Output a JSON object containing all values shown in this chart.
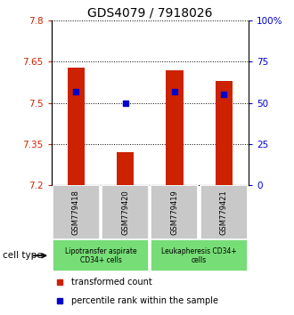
{
  "title": "GDS4079 / 7918026",
  "samples": [
    "GSM779418",
    "GSM779420",
    "GSM779419",
    "GSM779421"
  ],
  "red_values": [
    7.63,
    7.32,
    7.62,
    7.58
  ],
  "blue_values": [
    57,
    50,
    57,
    55
  ],
  "y_min": 7.2,
  "y_max": 7.8,
  "y_ticks_left": [
    7.2,
    7.35,
    7.5,
    7.65,
    7.8
  ],
  "y_ticks_right": [
    0,
    25,
    50,
    75,
    100
  ],
  "groups": [
    {
      "label": "Lipotransfer aspirate\nCD34+ cells",
      "samples_idx": [
        0,
        1
      ],
      "color": "#77DD77"
    },
    {
      "label": "Leukapheresis CD34+\ncells",
      "samples_idx": [
        2,
        3
      ],
      "color": "#77DD77"
    }
  ],
  "group_label": "cell type",
  "legend_red": "transformed count",
  "legend_blue": "percentile rank within the sample",
  "bar_color": "#CC2200",
  "dot_color": "#0000CC",
  "bar_width": 0.35,
  "left_tick_color": "#CC2200",
  "right_tick_color": "#0000CC",
  "title_fontsize": 10,
  "tick_fontsize": 7.5,
  "sample_label_bg": "#C8C8C8",
  "legend_fontsize": 7
}
